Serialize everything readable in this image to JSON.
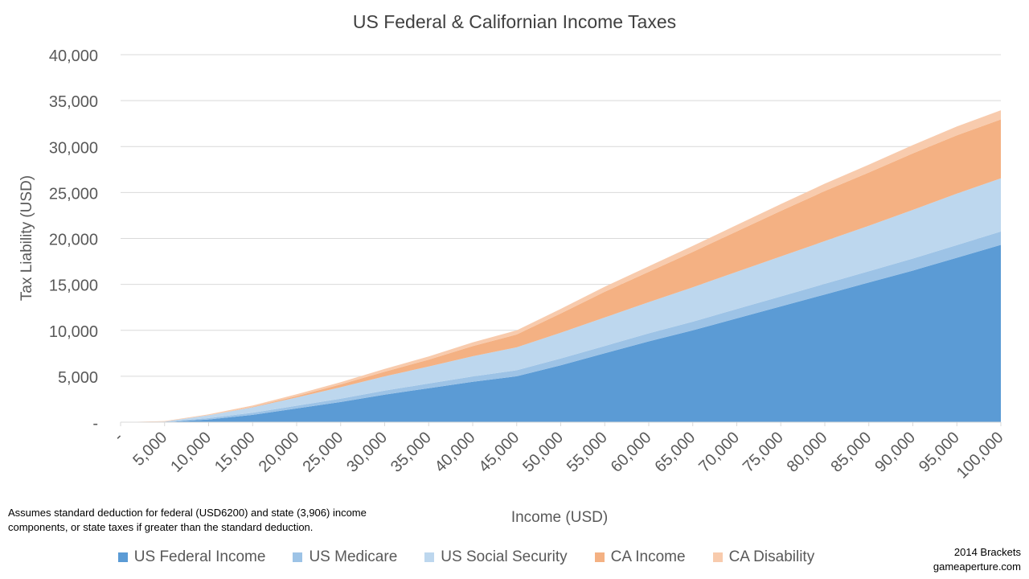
{
  "chart_data": {
    "type": "area",
    "stacked": true,
    "title": "US Federal & Californian Income Taxes",
    "xlabel": "Income (USD)",
    "ylabel": "Tax Liability (USD)",
    "ylim": [
      0,
      40000
    ],
    "y_ticks": [
      "-",
      "5,000",
      "10,000",
      "15,000",
      "20,000",
      "25,000",
      "30,000",
      "35,000",
      "40,000"
    ],
    "x_ticks": [
      "-",
      "5,000",
      "10,000",
      "15,000",
      "20,000",
      "25,000",
      "30,000",
      "35,000",
      "40,000",
      "45,000",
      "50,000",
      "55,000",
      "60,000",
      "65,000",
      "70,000",
      "75,000",
      "80,000",
      "85,000",
      "90,000",
      "95,000",
      "100,000"
    ],
    "x": [
      0,
      5000,
      10000,
      15000,
      20000,
      25000,
      30000,
      35000,
      40000,
      45000,
      50000,
      55000,
      60000,
      65000,
      70000,
      75000,
      80000,
      85000,
      90000,
      95000,
      100000
    ],
    "grid": true,
    "legend_position": "bottom",
    "series": [
      {
        "name": "US Federal Income",
        "color": "#5b9bd5",
        "values": [
          0,
          0,
          300,
          800,
          1500,
          2200,
          3000,
          3700,
          4400,
          5000,
          6200,
          7500,
          8800,
          10000,
          11300,
          12600,
          13900,
          15200,
          16500,
          17900,
          19300
        ]
      },
      {
        "name": "US Medicare",
        "color": "#9dc3e6",
        "values": [
          0,
          70,
          150,
          220,
          290,
          360,
          440,
          510,
          580,
          650,
          730,
          800,
          870,
          940,
          1020,
          1090,
          1160,
          1230,
          1310,
          1380,
          1450
        ]
      },
      {
        "name": "US Social Security",
        "color": "#bdd7ee",
        "values": [
          0,
          0,
          300,
          600,
          900,
          1250,
          1550,
          1850,
          2200,
          2500,
          2800,
          3100,
          3400,
          3750,
          4050,
          4350,
          4650,
          4950,
          5300,
          5600,
          5800
        ]
      },
      {
        "name": "CA Income",
        "color": "#f4b183",
        "values": [
          0,
          0,
          0,
          50,
          150,
          300,
          500,
          750,
          1100,
          1400,
          2100,
          2800,
          3300,
          3850,
          4400,
          4950,
          5450,
          5800,
          6150,
          6350,
          6400
        ]
      },
      {
        "name": "CA Disability",
        "color": "#f8cbad",
        "values": [
          0,
          50,
          100,
          150,
          200,
          250,
          300,
          350,
          400,
          450,
          500,
          550,
          600,
          650,
          700,
          750,
          800,
          850,
          900,
          950,
          1000
        ]
      }
    ]
  },
  "notes": {
    "line1": "Assumes standard deduction for federal (USD6200)  and state (3,906) income",
    "line2": "components,  or state taxes if greater than the  standard deduction."
  },
  "credit": {
    "line1": "2014 Brackets",
    "line2": "gameaperture.com"
  }
}
